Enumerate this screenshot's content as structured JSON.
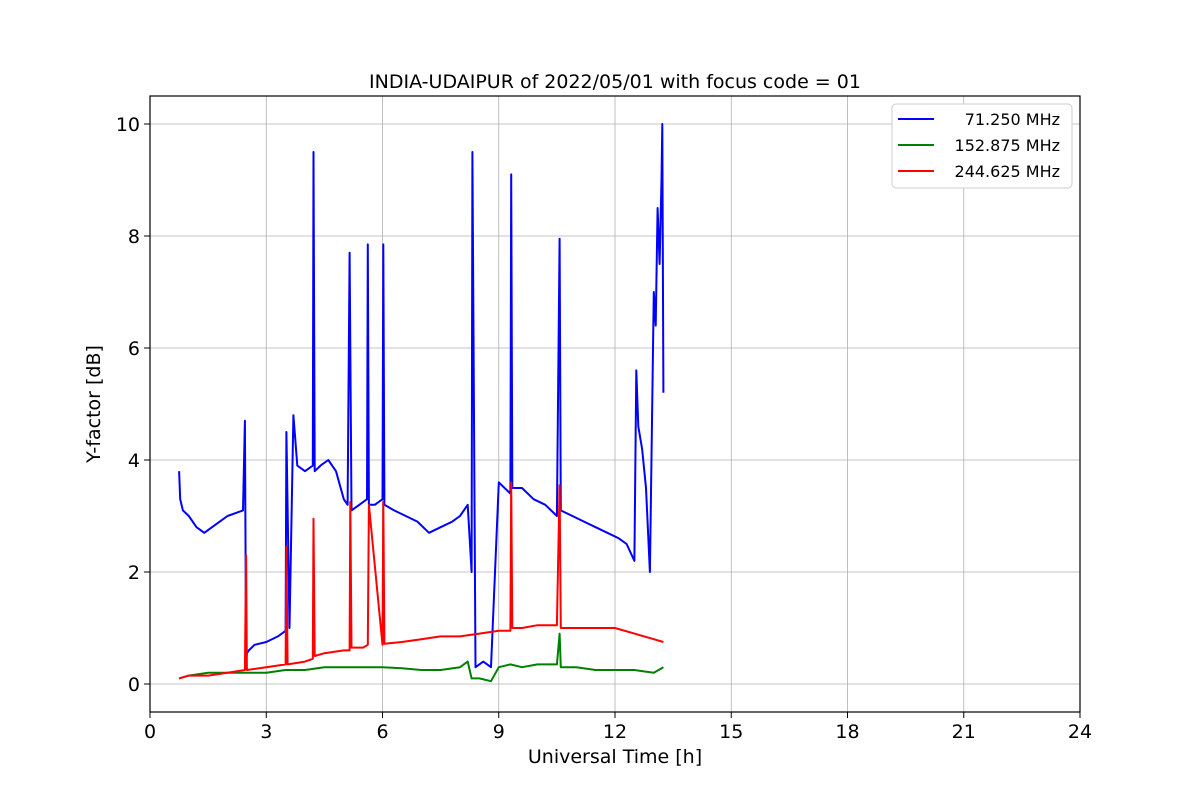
{
  "chart_data": {
    "type": "line",
    "title": "INDIA-UDAIPUR of 2022/05/01 with focus code = 01",
    "xlabel": "Universal Time [h]",
    "ylabel": "Y-factor [dB]",
    "xlim": [
      0,
      24
    ],
    "ylim": [
      -0.5,
      10.5
    ],
    "xticks": [
      0,
      3,
      6,
      9,
      12,
      15,
      18,
      21,
      24
    ],
    "yticks": [
      0,
      2,
      4,
      6,
      8,
      10
    ],
    "grid": true,
    "legend_position": "top-right",
    "series": [
      {
        "name": "71.250 MHz",
        "color": "#0000ff",
        "x": [
          0.75,
          0.78,
          0.85,
          1.0,
          1.2,
          1.4,
          1.6,
          1.8,
          2.0,
          2.2,
          2.4,
          2.45,
          2.48,
          2.5,
          2.55,
          2.7,
          3.0,
          3.3,
          3.5,
          3.52,
          3.6,
          3.7,
          3.8,
          4.0,
          4.2,
          4.22,
          4.25,
          4.4,
          4.6,
          4.8,
          5.0,
          5.1,
          5.15,
          5.2,
          5.4,
          5.6,
          5.62,
          5.65,
          5.8,
          6.0,
          6.02,
          6.05,
          6.3,
          6.6,
          6.9,
          7.2,
          7.5,
          7.8,
          8.0,
          8.2,
          8.3,
          8.32,
          8.4,
          8.6,
          8.8,
          9.0,
          9.3,
          9.32,
          9.35,
          9.6,
          9.9,
          10.2,
          10.5,
          10.57,
          10.6,
          10.9,
          11.2,
          11.5,
          11.8,
          12.1,
          12.3,
          12.5,
          12.55,
          12.6,
          12.7,
          12.8,
          12.9,
          13.0,
          13.05,
          13.1,
          13.15,
          13.2,
          13.22,
          13.25
        ],
        "y": [
          3.8,
          3.3,
          3.1,
          3.0,
          2.8,
          2.7,
          2.8,
          2.9,
          3.0,
          3.05,
          3.1,
          4.7,
          0.4,
          0.55,
          0.6,
          0.7,
          0.75,
          0.85,
          0.95,
          4.5,
          1.0,
          4.8,
          3.9,
          3.8,
          3.9,
          9.5,
          3.8,
          3.9,
          4.0,
          3.8,
          3.3,
          3.2,
          7.7,
          3.1,
          3.2,
          3.3,
          7.85,
          3.2,
          3.2,
          3.3,
          7.85,
          3.2,
          3.1,
          3.0,
          2.9,
          2.7,
          2.8,
          2.9,
          3.0,
          3.2,
          2.0,
          9.5,
          0.3,
          0.4,
          0.3,
          3.6,
          3.4,
          9.1,
          3.5,
          3.5,
          3.3,
          3.2,
          3.0,
          7.95,
          3.1,
          3.0,
          2.9,
          2.8,
          2.7,
          2.6,
          2.5,
          2.2,
          5.6,
          4.6,
          4.2,
          3.5,
          2.0,
          7.0,
          6.4,
          8.5,
          7.5,
          9.0,
          10.0,
          5.2
        ]
      },
      {
        "name": "152.875 MHz",
        "color": "#008000",
        "x": [
          0.75,
          1.0,
          1.5,
          2.0,
          2.5,
          3.0,
          3.5,
          4.0,
          4.5,
          5.0,
          5.5,
          6.0,
          6.5,
          7.0,
          7.5,
          8.0,
          8.2,
          8.3,
          8.5,
          8.8,
          9.0,
          9.3,
          9.6,
          10.0,
          10.5,
          10.57,
          10.6,
          11.0,
          11.5,
          12.0,
          12.5,
          13.0,
          13.25
        ],
        "y": [
          0.1,
          0.15,
          0.2,
          0.2,
          0.2,
          0.2,
          0.25,
          0.25,
          0.3,
          0.3,
          0.3,
          0.3,
          0.28,
          0.25,
          0.25,
          0.3,
          0.4,
          0.1,
          0.1,
          0.05,
          0.3,
          0.35,
          0.3,
          0.35,
          0.35,
          0.9,
          0.3,
          0.3,
          0.25,
          0.25,
          0.25,
          0.2,
          0.3
        ]
      },
      {
        "name": "244.625 MHz",
        "color": "#ff0000",
        "x": [
          0.75,
          1.0,
          1.5,
          2.0,
          2.45,
          2.48,
          2.5,
          3.0,
          3.5,
          3.52,
          3.55,
          4.0,
          4.2,
          4.22,
          4.25,
          4.5,
          5.0,
          5.15,
          5.17,
          5.2,
          5.5,
          5.62,
          5.65,
          6.0,
          6.02,
          6.05,
          6.5,
          7.0,
          7.5,
          8.0,
          8.5,
          9.0,
          9.3,
          9.32,
          9.35,
          9.6,
          10.0,
          10.5,
          10.57,
          10.6,
          11.0,
          11.5,
          12.0,
          12.5,
          13.0,
          13.25
        ],
        "y": [
          0.1,
          0.15,
          0.15,
          0.2,
          0.25,
          2.3,
          0.25,
          0.3,
          0.35,
          2.45,
          0.35,
          0.4,
          0.45,
          2.95,
          0.5,
          0.55,
          0.6,
          0.6,
          3.25,
          0.65,
          0.65,
          0.7,
          3.2,
          0.7,
          3.25,
          0.72,
          0.75,
          0.8,
          0.85,
          0.85,
          0.9,
          0.95,
          0.95,
          3.6,
          1.0,
          1.0,
          1.05,
          1.05,
          3.55,
          1.0,
          1.0,
          1.0,
          1.0,
          0.9,
          0.8,
          0.75
        ]
      }
    ]
  }
}
